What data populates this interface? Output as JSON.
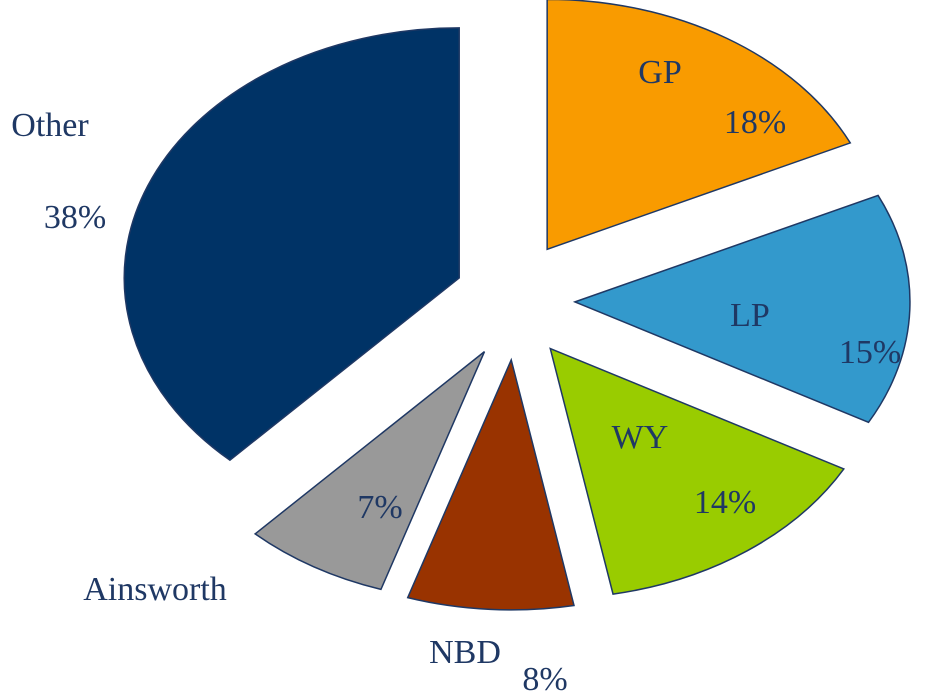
{
  "chart_data": {
    "type": "pie",
    "categories": [
      "GP",
      "LP",
      "WY",
      "NBD",
      "Ainsworth",
      "Other"
    ],
    "values": [
      18,
      15,
      14,
      8,
      7,
      38
    ],
    "value_labels": [
      "18%",
      "15%",
      "14%",
      "8%",
      "7%",
      "38%"
    ],
    "colors": [
      "#f99b00",
      "#3399cc",
      "#99cc00",
      "#993300",
      "#999999",
      "#003366"
    ],
    "exploded": true
  }
}
